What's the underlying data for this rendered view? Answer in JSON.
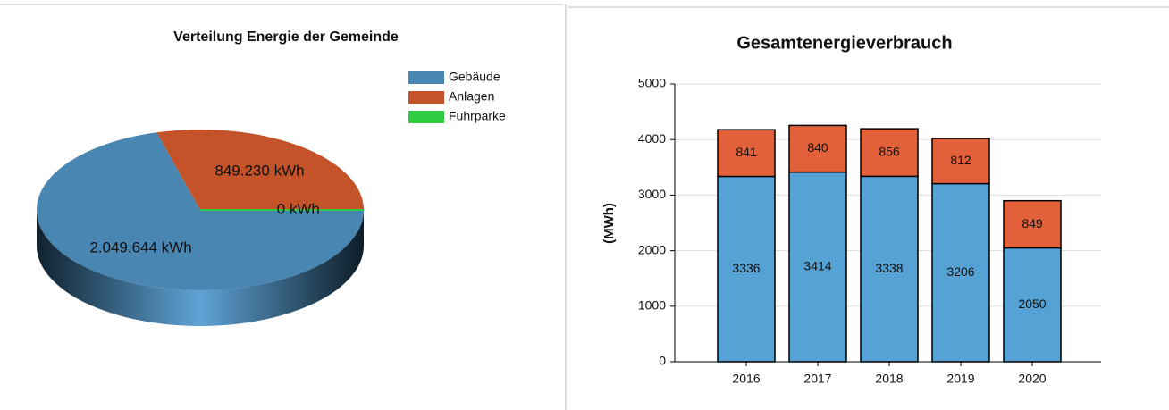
{
  "chart_data": [
    {
      "type": "pie",
      "title": "Verteilung Energie der Gemeinde",
      "categories": [
        "Gebäude",
        "Anlagen",
        "Fuhrparke"
      ],
      "values": [
        2049644,
        849230,
        0
      ],
      "value_labels": [
        "2.049.644 kWh",
        "849.230 kWh",
        "0 kWh"
      ],
      "colors": [
        "#4a86b2",
        "#c4532a",
        "#2ecc40"
      ],
      "legend": "top-right"
    },
    {
      "type": "bar",
      "stacked": true,
      "title": "Gesamtenergieverbrauch",
      "y_label": "(MWh)",
      "categories": [
        "2016",
        "2017",
        "2018",
        "2019",
        "2020"
      ],
      "series": [
        {
          "color": "#56a2d5",
          "values": [
            3336,
            3414,
            3338,
            3206,
            2050
          ]
        },
        {
          "color": "#e2603a",
          "values": [
            841,
            840,
            856,
            812,
            849
          ]
        }
      ],
      "ylim": [
        0,
        5000
      ],
      "yticks": [
        0,
        1000,
        2000,
        3000,
        4000,
        5000
      ],
      "grid": true
    }
  ]
}
